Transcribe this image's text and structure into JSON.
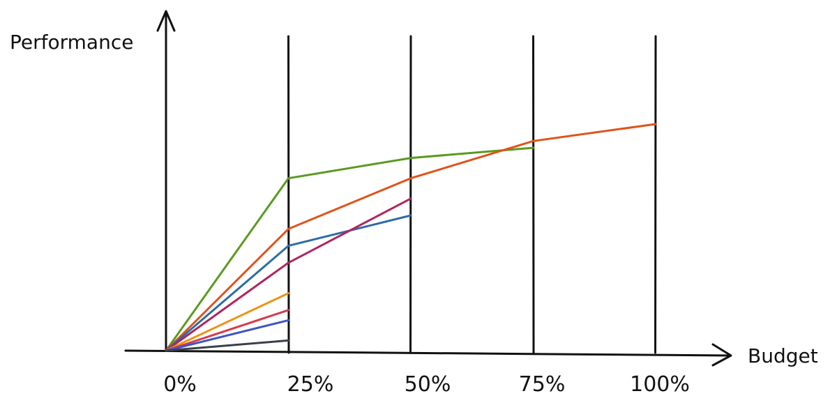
{
  "chart_data": {
    "type": "line",
    "xlabel": "Budget",
    "ylabel": "Performance",
    "x_ticks": [
      "0%",
      "25%",
      "50%",
      "75%",
      "100%"
    ],
    "x_values": [
      0,
      25,
      50,
      75,
      100
    ],
    "xlim": [
      0,
      100
    ],
    "ylim": [
      0,
      100
    ],
    "grid": "vertical lines at each budget tick",
    "legend": "none",
    "series": [
      {
        "color": "#5a9a1e",
        "points": [
          [
            0,
            0
          ],
          [
            25,
            51
          ],
          [
            50,
            57
          ],
          [
            75,
            60
          ]
        ]
      },
      {
        "color": "#e0531a",
        "points": [
          [
            0,
            0
          ],
          [
            25,
            36
          ],
          [
            50,
            51
          ],
          [
            75,
            62
          ],
          [
            100,
            67
          ]
        ]
      },
      {
        "color": "#2b6ca8",
        "points": [
          [
            0,
            0
          ],
          [
            25,
            31
          ],
          [
            50,
            40
          ]
        ]
      },
      {
        "color": "#b0255e",
        "points": [
          [
            0,
            0
          ],
          [
            25,
            26
          ],
          [
            50,
            45
          ]
        ]
      },
      {
        "color": "#ef9212",
        "points": [
          [
            0,
            0
          ],
          [
            25,
            17
          ]
        ]
      },
      {
        "color": "#d63a4a",
        "points": [
          [
            0,
            0
          ],
          [
            25,
            12
          ]
        ]
      },
      {
        "color": "#3c55c8",
        "points": [
          [
            0,
            0
          ],
          [
            25,
            9
          ]
        ]
      },
      {
        "color": "#3b3f4a",
        "points": [
          [
            0,
            0
          ],
          [
            25,
            3
          ]
        ]
      }
    ]
  }
}
